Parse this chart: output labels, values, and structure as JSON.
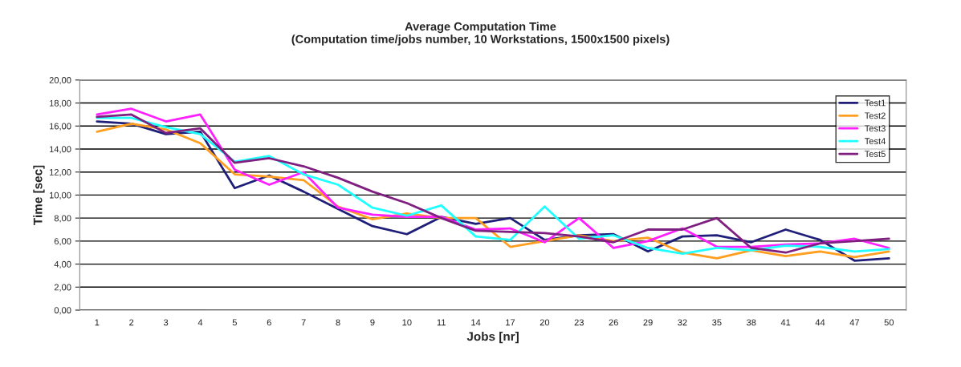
{
  "chart_data": {
    "type": "line",
    "title": "Average Computation Time\n(Computation time/jobs number, 10 Workstations, 1500x1500 pixels)",
    "xlabel": "Jobs [nr]",
    "ylabel": "Time [sec]",
    "categories": [
      "1",
      "2",
      "3",
      "4",
      "5",
      "6",
      "7",
      "8",
      "9",
      "10",
      "11",
      "14",
      "17",
      "20",
      "23",
      "26",
      "29",
      "32",
      "35",
      "38",
      "41",
      "44",
      "47",
      "50"
    ],
    "series": [
      {
        "name": "Test1",
        "color": "#1f1f7a",
        "values": [
          16.4,
          16.2,
          15.3,
          15.5,
          10.6,
          11.7,
          10.3,
          8.8,
          7.3,
          6.6,
          8.1,
          7.5,
          8.0,
          6.1,
          6.5,
          6.6,
          5.1,
          6.4,
          6.5,
          5.9,
          7.0,
          6.1,
          4.3,
          4.5
        ]
      },
      {
        "name": "Test2",
        "color": "#ff9e1f",
        "values": [
          15.5,
          16.2,
          15.7,
          14.5,
          11.8,
          11.6,
          11.3,
          9.0,
          7.9,
          8.4,
          8.0,
          8.0,
          5.5,
          6.0,
          6.5,
          6.0,
          6.3,
          5.0,
          4.5,
          5.2,
          4.7,
          5.1,
          4.6,
          5.1
        ]
      },
      {
        "name": "Test3",
        "color": "#ff1fff",
        "values": [
          17.0,
          17.5,
          16.4,
          17.0,
          12.2,
          10.9,
          12.0,
          8.9,
          8.3,
          8.1,
          8.1,
          7.0,
          7.1,
          5.9,
          8.0,
          5.4,
          6.0,
          7.1,
          5.5,
          5.5,
          5.7,
          5.8,
          6.2,
          5.4
        ]
      },
      {
        "name": "Test4",
        "color": "#1fffff",
        "values": [
          16.7,
          16.7,
          15.9,
          15.3,
          12.9,
          13.4,
          11.8,
          10.9,
          8.9,
          8.2,
          9.1,
          6.4,
          6.1,
          9.0,
          6.2,
          6.5,
          5.4,
          4.9,
          5.4,
          5.2,
          5.6,
          5.5,
          5.1,
          5.3
        ]
      },
      {
        "name": "Test5",
        "color": "#7f1f7f",
        "values": [
          16.8,
          17.0,
          15.4,
          15.8,
          12.8,
          13.2,
          12.5,
          11.5,
          10.3,
          9.3,
          8.0,
          6.9,
          6.8,
          6.7,
          6.4,
          5.9,
          7.0,
          7.0,
          8.0,
          5.4,
          5.0,
          5.8,
          6.0,
          6.2
        ]
      }
    ],
    "ylim": [
      0,
      20
    ],
    "yticks": [
      {
        "value": 0,
        "label": "0,00"
      },
      {
        "value": 2,
        "label": "2,00"
      },
      {
        "value": 4,
        "label": "4,00"
      },
      {
        "value": 6,
        "label": "6,00"
      },
      {
        "value": 8,
        "label": "8,00"
      },
      {
        "value": 10,
        "label": "10,00"
      },
      {
        "value": 12,
        "label": "12,00"
      },
      {
        "value": 14,
        "label": "14,00"
      },
      {
        "value": 16,
        "label": "16,00"
      },
      {
        "value": 18,
        "label": "18,00"
      },
      {
        "value": 20,
        "label": "20,00"
      }
    ],
    "grid": "y",
    "legend": "top right",
    "line_style": "solid"
  }
}
